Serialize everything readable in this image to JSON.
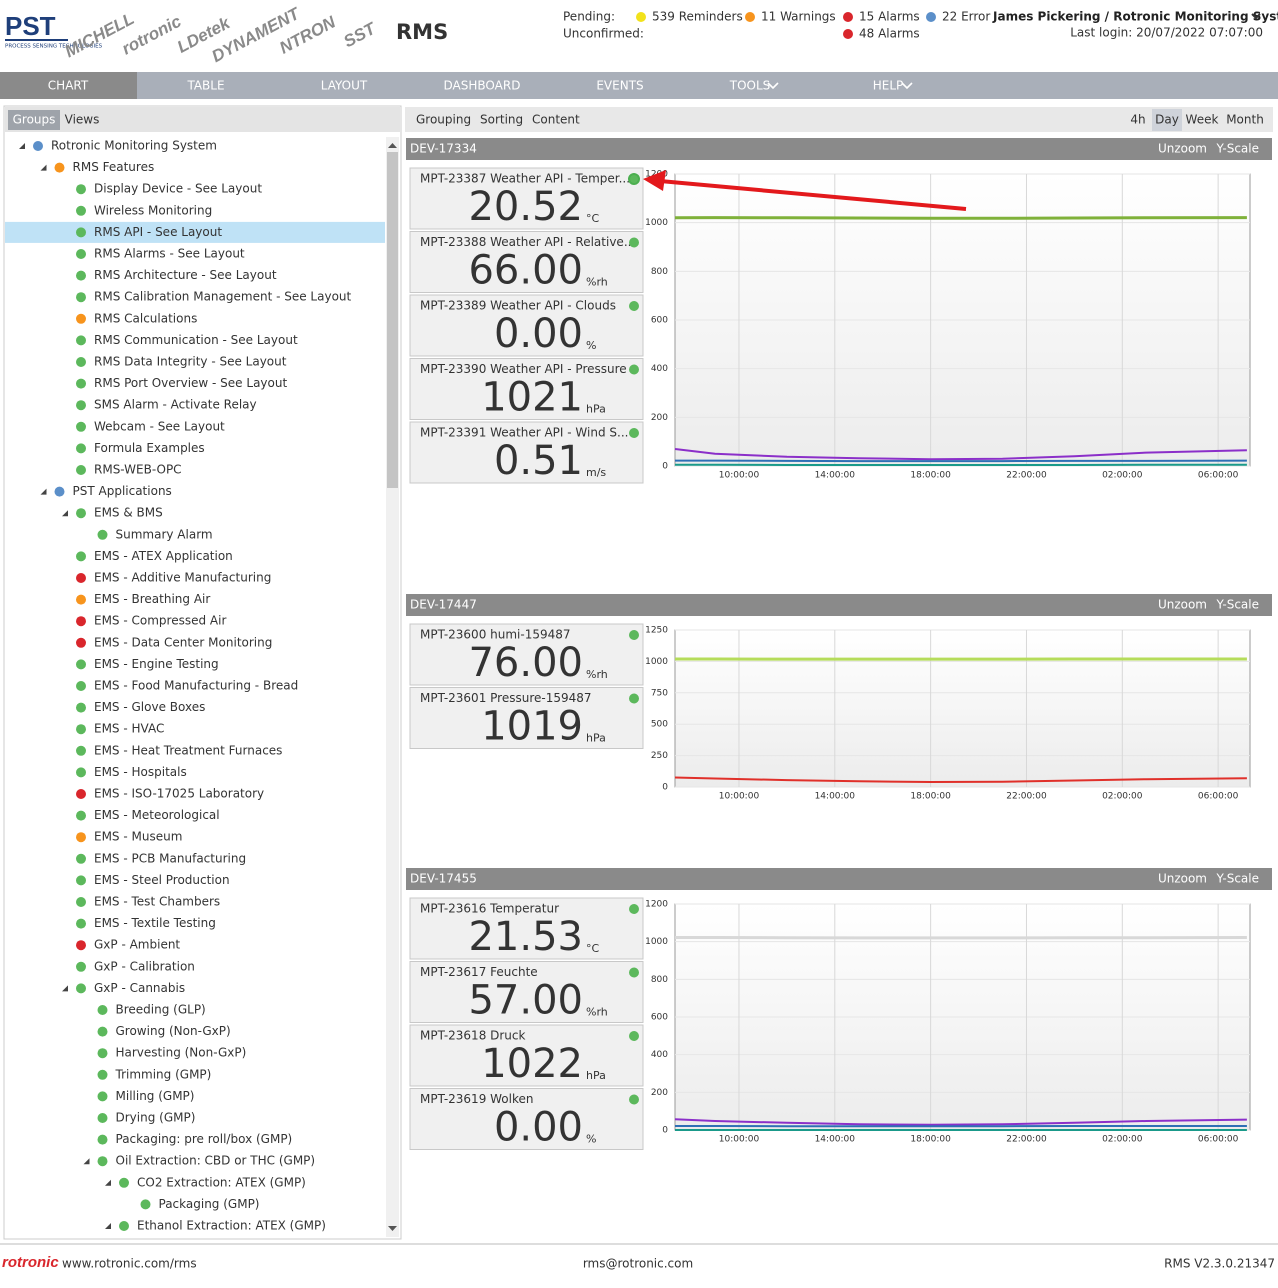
{
  "header": {
    "logo": {
      "name": "PST",
      "tagline": "PROCESS SENSING TECHNOLOGIES"
    },
    "brands": [
      "MICHELL",
      "rotronic",
      "LDetek",
      "DYNAMENT",
      "NTRON",
      "SST"
    ],
    "app_title": "RMS",
    "pending_label": "Pending:",
    "unconfirmed_label": "Unconfirmed:",
    "pending": [
      {
        "text": "539 Reminders",
        "color": "#f2e21b"
      },
      {
        "text": "11 Warnings",
        "color": "#f7941d"
      },
      {
        "text": "15 Alarms",
        "color": "#d9262c"
      },
      {
        "text": "22 Error",
        "color": "#5b8fc9"
      }
    ],
    "unconfirmed": [
      {
        "text": "48 Alarms",
        "color": "#d9262c"
      }
    ],
    "user": "James Pickering / Rotronic Monitoring System",
    "last_login": "Last login: 20/07/2022 07:07:00"
  },
  "nav": {
    "items": [
      "CHART",
      "TABLE",
      "LAYOUT",
      "DASHBOARD",
      "EVENTS",
      "TOOLS",
      "HELP"
    ],
    "active": 0
  },
  "sidebar": {
    "tabs": [
      "Groups",
      "Views"
    ],
    "active_tab": 0,
    "tree": [
      {
        "label": "Rotronic Monitoring System",
        "level": 0,
        "color": "#5b8fc9",
        "expanded": true
      },
      {
        "label": "RMS Features",
        "level": 1,
        "color": "#f7941d",
        "expanded": true
      },
      {
        "label": "Display Device - See Layout",
        "level": 2,
        "color": "#5cb85c"
      },
      {
        "label": "Wireless Monitoring",
        "level": 2,
        "color": "#5cb85c"
      },
      {
        "label": "RMS API - See Layout",
        "level": 2,
        "color": "#5cb85c",
        "selected": true
      },
      {
        "label": "RMS Alarms - See Layout",
        "level": 2,
        "color": "#5cb85c"
      },
      {
        "label": "RMS Architecture - See Layout",
        "level": 2,
        "color": "#5cb85c"
      },
      {
        "label": "RMS Calibration Management - See Layout",
        "level": 2,
        "color": "#5cb85c"
      },
      {
        "label": "RMS Calculations",
        "level": 2,
        "color": "#f7941d"
      },
      {
        "label": "RMS Communication - See Layout",
        "level": 2,
        "color": "#5cb85c"
      },
      {
        "label": "RMS Data Integrity - See Layout",
        "level": 2,
        "color": "#5cb85c"
      },
      {
        "label": "RMS Port Overview - See Layout",
        "level": 2,
        "color": "#5cb85c"
      },
      {
        "label": "SMS Alarm - Activate Relay",
        "level": 2,
        "color": "#5cb85c"
      },
      {
        "label": "Webcam - See Layout",
        "level": 2,
        "color": "#5cb85c"
      },
      {
        "label": "Formula Examples",
        "level": 2,
        "color": "#5cb85c"
      },
      {
        "label": "RMS-WEB-OPC",
        "level": 2,
        "color": "#5cb85c"
      },
      {
        "label": "PST Applications",
        "level": 1,
        "color": "#5b8fc9",
        "expanded": true
      },
      {
        "label": "EMS & BMS",
        "level": 2,
        "color": "#5cb85c",
        "expanded": true
      },
      {
        "label": "Summary Alarm",
        "level": 3,
        "color": "#5cb85c"
      },
      {
        "label": "EMS - ATEX Application",
        "level": 2,
        "color": "#5cb85c"
      },
      {
        "label": "EMS - Additive Manufacturing",
        "level": 2,
        "color": "#d9262c"
      },
      {
        "label": "EMS - Breathing Air",
        "level": 2,
        "color": "#f7941d"
      },
      {
        "label": "EMS - Compressed Air",
        "level": 2,
        "color": "#d9262c"
      },
      {
        "label": "EMS - Data Center Monitoring",
        "level": 2,
        "color": "#d9262c"
      },
      {
        "label": "EMS - Engine Testing",
        "level": 2,
        "color": "#5cb85c"
      },
      {
        "label": "EMS - Food Manufacturing - Bread",
        "level": 2,
        "color": "#5cb85c"
      },
      {
        "label": "EMS - Glove Boxes",
        "level": 2,
        "color": "#5cb85c"
      },
      {
        "label": "EMS - HVAC",
        "level": 2,
        "color": "#5cb85c"
      },
      {
        "label": "EMS - Heat Treatment Furnaces",
        "level": 2,
        "color": "#5cb85c"
      },
      {
        "label": "EMS - Hospitals",
        "level": 2,
        "color": "#5cb85c"
      },
      {
        "label": "EMS - ISO-17025 Laboratory",
        "level": 2,
        "color": "#d9262c"
      },
      {
        "label": "EMS - Meteorological",
        "level": 2,
        "color": "#5cb85c"
      },
      {
        "label": "EMS - Museum",
        "level": 2,
        "color": "#f7941d"
      },
      {
        "label": "EMS - PCB Manufacturing",
        "level": 2,
        "color": "#5cb85c"
      },
      {
        "label": "EMS - Steel Production",
        "level": 2,
        "color": "#5cb85c"
      },
      {
        "label": "EMS - Test Chambers",
        "level": 2,
        "color": "#5cb85c"
      },
      {
        "label": "EMS - Textile Testing",
        "level": 2,
        "color": "#5cb85c"
      },
      {
        "label": "GxP - Ambient",
        "level": 2,
        "color": "#d9262c"
      },
      {
        "label": "GxP - Calibration",
        "level": 2,
        "color": "#5cb85c"
      },
      {
        "label": "GxP - Cannabis",
        "level": 2,
        "color": "#5cb85c",
        "expanded": true
      },
      {
        "label": "Breeding (GLP)",
        "level": 3,
        "color": "#5cb85c"
      },
      {
        "label": "Growing (Non-GxP)",
        "level": 3,
        "color": "#5cb85c"
      },
      {
        "label": "Harvesting (Non-GxP)",
        "level": 3,
        "color": "#5cb85c"
      },
      {
        "label": "Trimming (GMP)",
        "level": 3,
        "color": "#5cb85c"
      },
      {
        "label": "Milling (GMP)",
        "level": 3,
        "color": "#5cb85c"
      },
      {
        "label": "Drying (GMP)",
        "level": 3,
        "color": "#5cb85c"
      },
      {
        "label": "Packaging: pre roll/box (GMP)",
        "level": 3,
        "color": "#5cb85c"
      },
      {
        "label": "Oil Extraction: CBD or THC (GMP)",
        "level": 3,
        "color": "#5cb85c",
        "expanded": true
      },
      {
        "label": "CO2 Extraction: ATEX (GMP)",
        "level": 4,
        "color": "#5cb85c",
        "expanded": true
      },
      {
        "label": "Packaging (GMP)",
        "level": 5,
        "color": "#5cb85c"
      },
      {
        "label": "Ethanol Extraction: ATEX (GMP)",
        "level": 4,
        "color": "#5cb85c",
        "expanded": true
      }
    ]
  },
  "toolbar": {
    "items": [
      "Grouping",
      "Sorting",
      "Content"
    ],
    "ranges": [
      "4h",
      "Day",
      "Week",
      "Month"
    ],
    "active_range": 1
  },
  "devices": [
    {
      "name": "DEV-17334",
      "actions": [
        "Unzoom",
        "Y-Scale"
      ],
      "tiles": [
        {
          "label": "MPT-23387 Weather API - Temper...",
          "value": "20.52",
          "unit": "°C"
        },
        {
          "label": "MPT-23388 Weather API - Relative...",
          "value": "66.00",
          "unit": "%rh"
        },
        {
          "label": "MPT-23389 Weather API - Clouds",
          "value": "0.00",
          "unit": "%"
        },
        {
          "label": "MPT-23390 Weather API - Pressure",
          "value": "1021",
          "unit": "hPa"
        },
        {
          "label": "MPT-23391 Weather API - Wind S...",
          "value": "0.51",
          "unit": "m/s"
        }
      ],
      "chart": {
        "type": "line",
        "ylim": [
          0,
          1200
        ],
        "yticks": [
          0,
          200,
          400,
          600,
          800,
          1000,
          1200
        ],
        "xlim": [
          7.33,
          31.33
        ],
        "xticks": [
          {
            "value": 10,
            "label": "10:00:00"
          },
          {
            "value": 14,
            "label": "14:00:00"
          },
          {
            "value": 18,
            "label": "18:00:00"
          },
          {
            "value": 22,
            "label": "22:00:00"
          },
          {
            "value": 26,
            "label": "02:00:00"
          },
          {
            "value": 30,
            "label": "06:00:00"
          }
        ],
        "grid": true,
        "x": [
          7.33,
          9,
          12,
          15,
          18,
          21,
          24,
          27,
          31.2
        ],
        "series": [
          {
            "color": "#7fb13a",
            "values": [
              1020,
              1021,
              1020,
              1019,
              1018,
              1018,
              1019,
              1020,
              1021
            ]
          },
          {
            "color": "#8b2fc9",
            "values": [
              70,
              50,
              38,
              32,
              28,
              30,
              40,
              55,
              65
            ]
          },
          {
            "color": "#2e6fb5",
            "values": [
              22,
              22,
              21,
              20,
              20,
              20,
              21,
              21,
              22
            ]
          },
          {
            "color": "#1a9a8a",
            "values": [
              5,
              5,
              4,
              4,
              4,
              4,
              4,
              5,
              5
            ]
          }
        ]
      }
    },
    {
      "name": "DEV-17447",
      "actions": [
        "Unzoom",
        "Y-Scale"
      ],
      "tiles": [
        {
          "label": "MPT-23600 humi-159487",
          "value": "76.00",
          "unit": "%rh"
        },
        {
          "label": "MPT-23601 Pressure-159487",
          "value": "1019",
          "unit": "hPa"
        }
      ],
      "chart": {
        "type": "line",
        "ylim": [
          0,
          1250
        ],
        "yticks": [
          0,
          250,
          500,
          750,
          1000,
          1250
        ],
        "xlim": [
          7.33,
          31.33
        ],
        "xticks": [
          {
            "value": 10,
            "label": "10:00:00"
          },
          {
            "value": 14,
            "label": "14:00:00"
          },
          {
            "value": 18,
            "label": "18:00:00"
          },
          {
            "value": 22,
            "label": "22:00:00"
          },
          {
            "value": 26,
            "label": "02:00:00"
          },
          {
            "value": 30,
            "label": "06:00:00"
          }
        ],
        "grid": true,
        "x": [
          7.33,
          9,
          12,
          15,
          18,
          21,
          24,
          27,
          31.2
        ],
        "series": [
          {
            "color": "#b5dc5a",
            "values": [
              1019,
              1019,
              1018,
              1018,
              1018,
              1018,
              1019,
              1019,
              1019
            ]
          },
          {
            "color": "#e0302a",
            "values": [
              76,
              68,
              55,
              45,
              40,
              42,
              52,
              62,
              70
            ]
          }
        ]
      }
    },
    {
      "name": "DEV-17455",
      "actions": [
        "Unzoom",
        "Y-Scale"
      ],
      "tiles": [
        {
          "label": "MPT-23616 Temperatur",
          "value": "21.53",
          "unit": "°C"
        },
        {
          "label": "MPT-23617 Feuchte",
          "value": "57.00",
          "unit": "%rh"
        },
        {
          "label": "MPT-23618 Druck",
          "value": "1022",
          "unit": "hPa"
        },
        {
          "label": "MPT-23619 Wolken",
          "value": "0.00",
          "unit": "%"
        }
      ],
      "chart": {
        "type": "line",
        "ylim": [
          0,
          1200
        ],
        "yticks": [
          0,
          200,
          400,
          600,
          800,
          1000,
          1200
        ],
        "xlim": [
          7.33,
          31.33
        ],
        "xticks": [
          {
            "value": 10,
            "label": "10:00:00"
          },
          {
            "value": 14,
            "label": "14:00:00"
          },
          {
            "value": 18,
            "label": "18:00:00"
          },
          {
            "value": 22,
            "label": "22:00:00"
          },
          {
            "value": 26,
            "label": "02:00:00"
          },
          {
            "value": 30,
            "label": "06:00:00"
          }
        ],
        "grid": true,
        "x": [
          7.33,
          9,
          12,
          15,
          18,
          21,
          24,
          27,
          31.2
        ],
        "series": [
          {
            "color": "#d8d8d8",
            "values": [
              1022,
              1022,
              1021,
              1020,
              1020,
              1020,
              1021,
              1021,
              1022
            ]
          },
          {
            "color": "#8b2fc9",
            "values": [
              57,
              48,
              38,
              30,
              28,
              30,
              38,
              48,
              55
            ]
          },
          {
            "color": "#2e6fb5",
            "values": [
              21,
              21,
              20,
              20,
              20,
              20,
              21,
              21,
              21
            ]
          },
          {
            "color": "#1a9a8a",
            "values": [
              0,
              0,
              0,
              0,
              0,
              0,
              0,
              0,
              0
            ]
          }
        ]
      }
    }
  ],
  "footer": {
    "brand": "rotronic",
    "url": "www.rotronic.com/rms",
    "email": "rms@rotronic.com",
    "version": "RMS V2.3.0.21347"
  }
}
